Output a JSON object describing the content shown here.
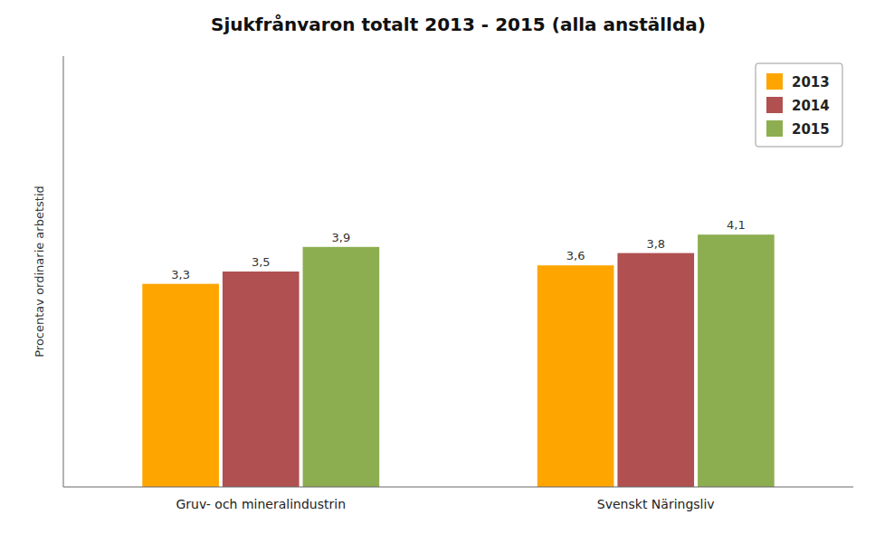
{
  "chart_data": {
    "type": "bar",
    "title": "Sjukfrånvaron totalt 2013 - 2015 (alla anställda)",
    "ylabel": "Procentav ordinarie arbetstid",
    "categories": [
      "Gruv- och mineralindustrin",
      "Svenskt Näringsliv"
    ],
    "series": [
      {
        "name": "2013",
        "color": "#FFA500",
        "values": [
          3.3,
          3.6
        ],
        "value_labels": [
          "3,3",
          "3,6"
        ]
      },
      {
        "name": "2014",
        "color": "#B05050",
        "values": [
          3.5,
          3.8
        ],
        "value_labels": [
          "3,5",
          "3,8"
        ]
      },
      {
        "name": "2015",
        "color": "#8DAE50",
        "values": [
          3.9,
          4.1
        ],
        "value_labels": [
          "3,9",
          "4,1"
        ]
      }
    ],
    "ylim": [
      0,
      7.0
    ],
    "tick_labels": "x",
    "data_labels": true,
    "legend": "upper right",
    "grid": false
  }
}
